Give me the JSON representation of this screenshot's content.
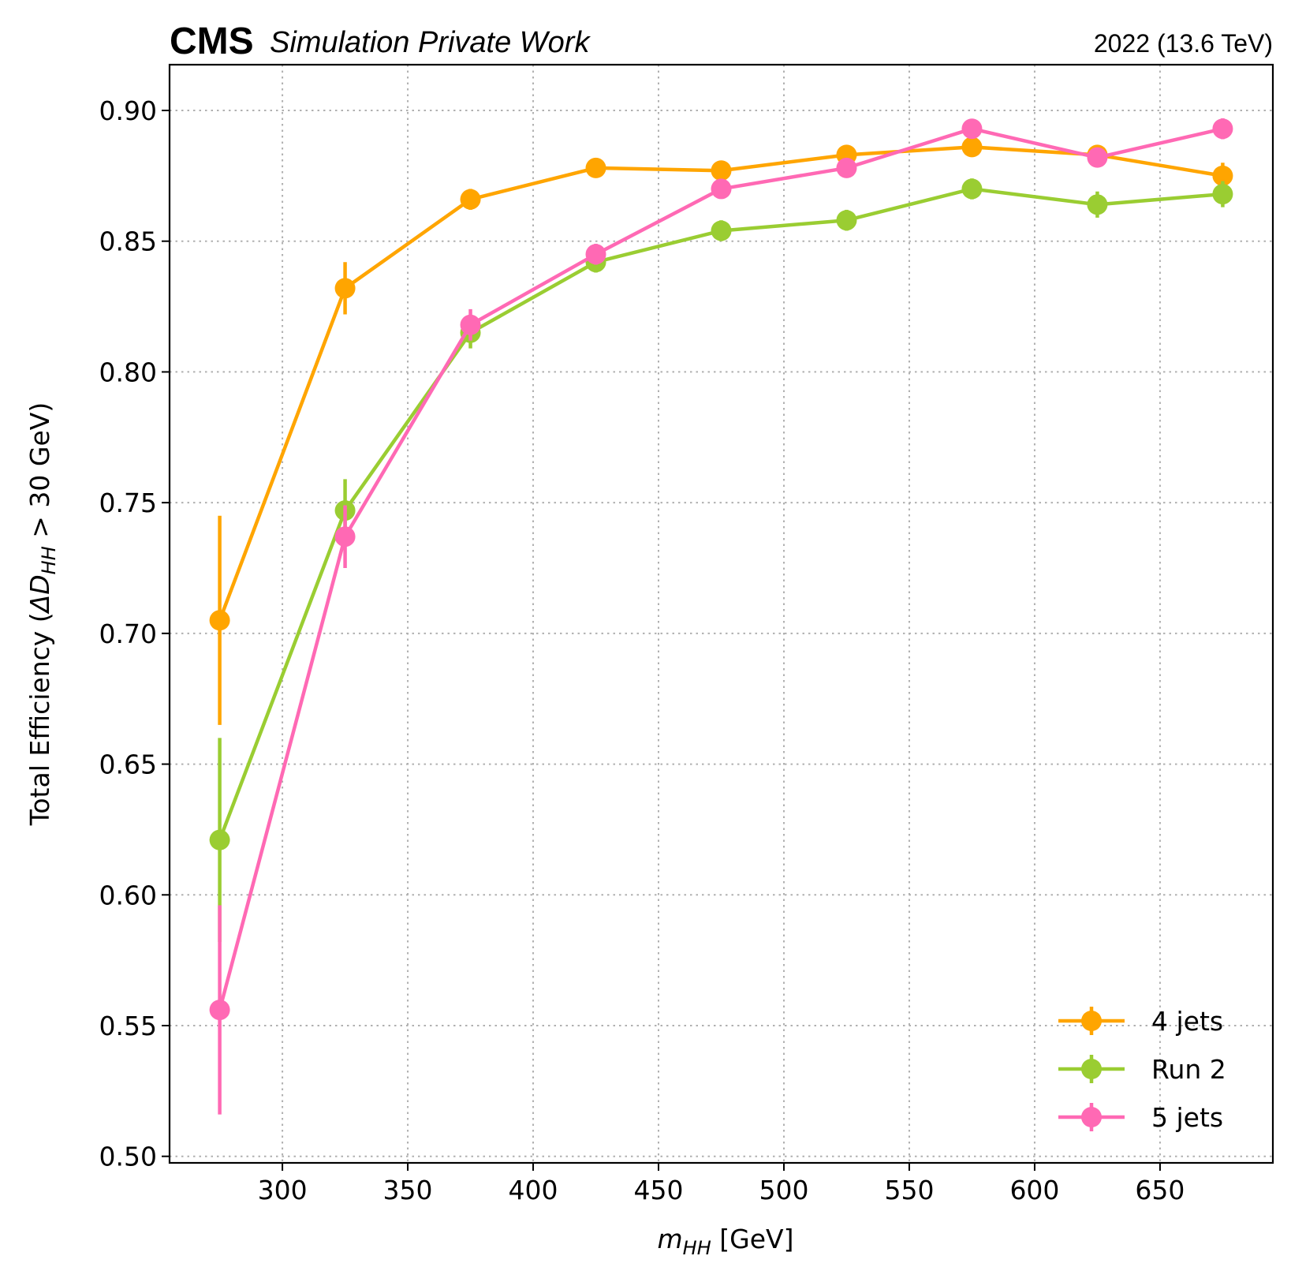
{
  "header": {
    "cms_label": "CMS",
    "cms_sublabel": "Simulation Private Work",
    "lumi_label": "2022 (13.6 TeV)"
  },
  "chart_data": {
    "type": "line",
    "xlabel_main": "m",
    "xlabel_sub": "HH",
    "xlabel_unit": " [GeV]",
    "ylabel_pre": "Total Efficiency (",
    "ylabel_delta": "ΔD",
    "ylabel_sub": "HH",
    "ylabel_post": " > 30 GeV)",
    "xlim": [
      255,
      695
    ],
    "ylim": [
      0.4975,
      0.9175
    ],
    "xticks": [
      300,
      350,
      400,
      450,
      500,
      550,
      600,
      650
    ],
    "xtick_labels": [
      "300",
      "350",
      "400",
      "450",
      "500",
      "550",
      "600",
      "650"
    ],
    "yticks": [
      0.5,
      0.55,
      0.6,
      0.65,
      0.7,
      0.75,
      0.8,
      0.85,
      0.9
    ],
    "ytick_labels": [
      "0.50",
      "0.55",
      "0.60",
      "0.65",
      "0.70",
      "0.75",
      "0.80",
      "0.85",
      "0.90"
    ],
    "grid": true,
    "legend_position": "lower-right",
    "x": [
      275,
      325,
      375,
      425,
      475,
      525,
      575,
      625,
      675
    ],
    "series": [
      {
        "name": "4 jets",
        "color": "#FFA500",
        "y": [
          0.705,
          0.832,
          0.866,
          0.878,
          0.877,
          0.883,
          0.886,
          0.883,
          0.875
        ],
        "yerr": [
          0.04,
          0.01,
          0.004,
          0.003,
          0.003,
          0.003,
          0.003,
          0.003,
          0.005
        ]
      },
      {
        "name": "Run 2",
        "color": "#9ACD32",
        "y": [
          0.621,
          0.747,
          0.815,
          0.842,
          0.854,
          0.858,
          0.87,
          0.864,
          0.868
        ],
        "yerr": [
          0.039,
          0.012,
          0.006,
          0.004,
          0.004,
          0.004,
          0.004,
          0.005,
          0.005
        ]
      },
      {
        "name": "5 jets",
        "color": "#FF69B4",
        "y": [
          0.556,
          0.737,
          0.818,
          0.845,
          0.87,
          0.878,
          0.893,
          0.882,
          0.893
        ],
        "yerr": [
          0.04,
          0.012,
          0.006,
          0.004,
          0.003,
          0.003,
          0.003,
          0.003,
          0.004
        ]
      }
    ]
  }
}
